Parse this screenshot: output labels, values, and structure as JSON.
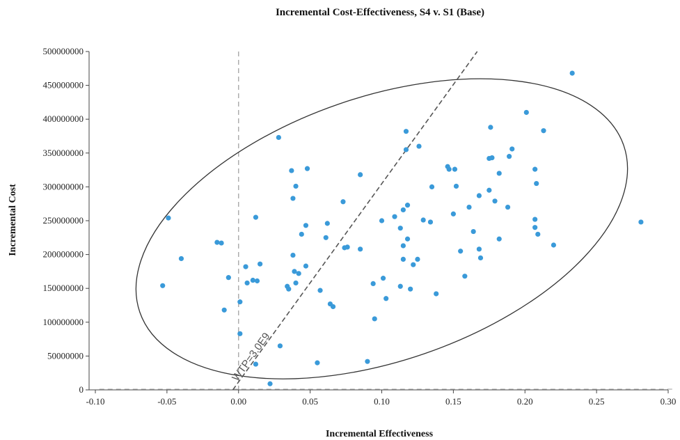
{
  "chart_data": {
    "type": "scatter",
    "title": "Incremental Cost-Effectiveness, S4 v. S1 (Base)",
    "xlabel": "Incremental Effectiveness",
    "ylabel": "Incremental Cost",
    "xlim": [
      -0.1,
      0.3
    ],
    "ylim": [
      0,
      500000000
    ],
    "x_ticks": [
      "-0.10",
      "-0.05",
      "0.00",
      "0.05",
      "0.10",
      "0.15",
      "0.20",
      "0.25",
      "0.30"
    ],
    "y_ticks": [
      "0",
      "50000000",
      "100000000",
      "150000000",
      "200000000",
      "250000000",
      "300000000",
      "350000000",
      "400000000",
      "450000000",
      "500000000"
    ],
    "wtp_label": "WTP=3.0E9",
    "wtp_slope": 3000000000,
    "point_color": "#3a9ad9",
    "ellipse": {
      "center": [
        0.1,
        238000000
      ],
      "rx_data": 0.1787,
      "ry_data": 195000000,
      "rotation_deg": -19
    },
    "points": [
      [
        0.233,
        468000000
      ],
      [
        0.201,
        410000000
      ],
      [
        0.176,
        388000000
      ],
      [
        0.213,
        383000000
      ],
      [
        0.117,
        382000000
      ],
      [
        0.028,
        373000000
      ],
      [
        0.126,
        360000000
      ],
      [
        0.117,
        355000000
      ],
      [
        0.191,
        356000000
      ],
      [
        0.175,
        342000000
      ],
      [
        0.177,
        343000000
      ],
      [
        0.189,
        345000000
      ],
      [
        0.048,
        327000000
      ],
      [
        0.147,
        326000000
      ],
      [
        0.151,
        326000000
      ],
      [
        0.146,
        330000000
      ],
      [
        0.037,
        324000000
      ],
      [
        0.207,
        326000000
      ],
      [
        0.085,
        318000000
      ],
      [
        0.182,
        320000000
      ],
      [
        0.208,
        305000000
      ],
      [
        0.04,
        301000000
      ],
      [
        0.135,
        300000000
      ],
      [
        0.152,
        301000000
      ],
      [
        0.175,
        295000000
      ],
      [
        0.168,
        287000000
      ],
      [
        0.038,
        283000000
      ],
      [
        0.073,
        278000000
      ],
      [
        0.179,
        279000000
      ],
      [
        0.118,
        273000000
      ],
      [
        0.161,
        270000000
      ],
      [
        0.188,
        270000000
      ],
      [
        0.115,
        266000000
      ],
      [
        0.15,
        260000000
      ],
      [
        0.109,
        256000000
      ],
      [
        0.012,
        255000000
      ],
      [
        -0.049,
        254000000
      ],
      [
        0.207,
        252000000
      ],
      [
        0.1,
        250000000
      ],
      [
        0.129,
        251000000
      ],
      [
        0.134,
        248000000
      ],
      [
        0.281,
        248000000
      ],
      [
        0.047,
        243000000
      ],
      [
        0.062,
        246000000
      ],
      [
        0.113,
        239000000
      ],
      [
        0.207,
        240000000
      ],
      [
        0.164,
        234000000
      ],
      [
        0.044,
        230000000
      ],
      [
        0.209,
        230000000
      ],
      [
        0.061,
        225000000
      ],
      [
        0.182,
        223000000
      ],
      [
        0.118,
        223000000
      ],
      [
        0.22,
        214000000
      ],
      [
        -0.015,
        218000000
      ],
      [
        -0.012,
        217000000
      ],
      [
        0.115,
        213000000
      ],
      [
        0.076,
        211000000
      ],
      [
        0.074,
        210000000
      ],
      [
        0.085,
        208000000
      ],
      [
        0.155,
        205000000
      ],
      [
        0.168,
        208000000
      ],
      [
        0.038,
        199000000
      ],
      [
        0.169,
        195000000
      ],
      [
        -0.04,
        194000000
      ],
      [
        0.115,
        193000000
      ],
      [
        0.125,
        193000000
      ],
      [
        0.015,
        186000000
      ],
      [
        0.047,
        183000000
      ],
      [
        0.005,
        182000000
      ],
      [
        0.122,
        185000000
      ],
      [
        0.039,
        175000000
      ],
      [
        0.042,
        172000000
      ],
      [
        0.158,
        168000000
      ],
      [
        -0.007,
        166000000
      ],
      [
        0.01,
        162000000
      ],
      [
        0.013,
        161000000
      ],
      [
        0.101,
        165000000
      ],
      [
        0.006,
        158000000
      ],
      [
        0.04,
        158000000
      ],
      [
        0.094,
        157000000
      ],
      [
        -0.053,
        154000000
      ],
      [
        0.034,
        153000000
      ],
      [
        0.113,
        153000000
      ],
      [
        0.035,
        149000000
      ],
      [
        0.057,
        147000000
      ],
      [
        0.12,
        149000000
      ],
      [
        0.138,
        142000000
      ],
      [
        0.103,
        135000000
      ],
      [
        0.064,
        127000000
      ],
      [
        0.066,
        123000000
      ],
      [
        0.001,
        130000000
      ],
      [
        -0.01,
        118000000
      ],
      [
        0.095,
        105000000
      ],
      [
        0.001,
        83000000
      ],
      [
        0.029,
        65000000
      ],
      [
        0.055,
        40000000
      ],
      [
        0.09,
        42000000
      ],
      [
        0.012,
        38000000
      ],
      [
        0.022,
        9000000
      ]
    ]
  }
}
